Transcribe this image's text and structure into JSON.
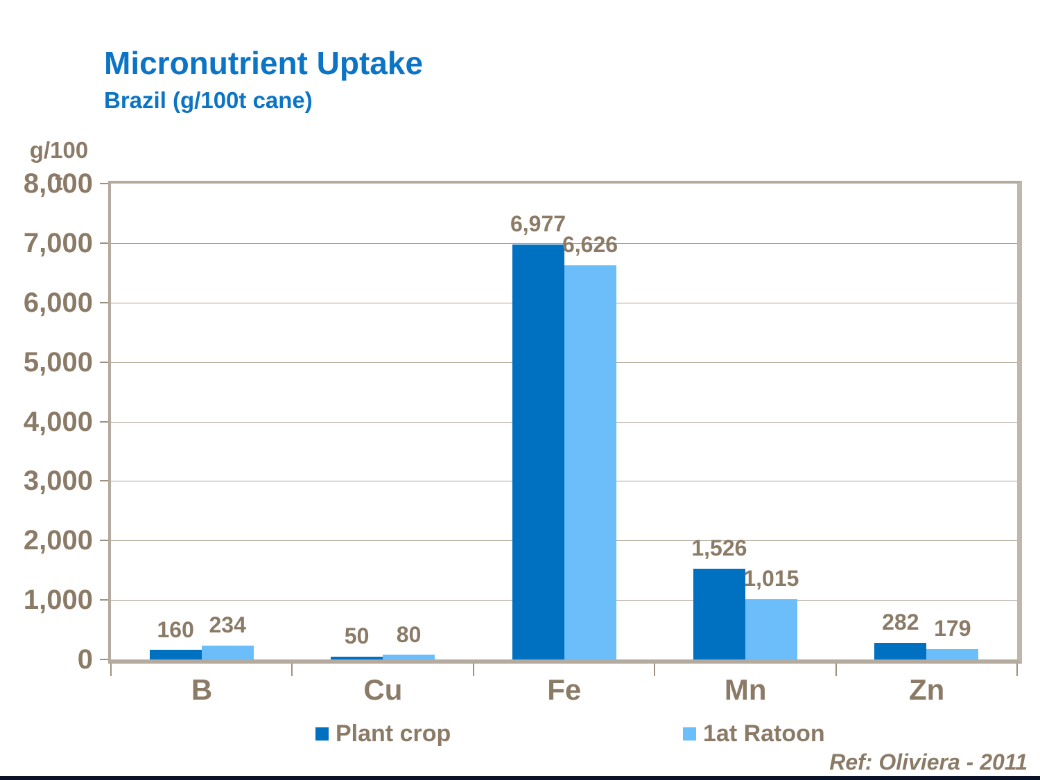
{
  "header": {
    "title": "Micronutrient Uptake",
    "subtitle": "Brazil (g/100t cane)"
  },
  "footer": {
    "reference": "Ref: Oliviera - 2011"
  },
  "y_axis": {
    "title_line1": "g/100",
    "title_line2": "t"
  },
  "chart_data": {
    "type": "bar",
    "title": "Micronutrient Uptake",
    "subtitle": "Brazil (g/100t cane)",
    "ylabel": "g/100 t",
    "xlabel": "",
    "categories": [
      "B",
      "Cu",
      "Fe",
      "Mn",
      "Zn"
    ],
    "series": [
      {
        "name": "Plant crop",
        "color": "#0070c0",
        "values": [
          160,
          50,
          6977,
          1526,
          282
        ]
      },
      {
        "name": "1at Ratoon",
        "color": "#6cbefb",
        "values": [
          234,
          80,
          6626,
          1015,
          179
        ]
      }
    ],
    "ylim": [
      0,
      8000
    ],
    "ytick_step": 1000,
    "grid": true,
    "legend_position": "bottom",
    "data_labels": true
  },
  "colors": {
    "title_blue": "#0b74c4",
    "plant_crop_blue": "#0070c0",
    "ratoon_blue": "#6cbefb",
    "text_brown": "#8a7a66",
    "frame_beige": "#b4aa9e",
    "gridline_beige": "#ad9f90",
    "bottom_bar_navy": "#0a1228"
  }
}
